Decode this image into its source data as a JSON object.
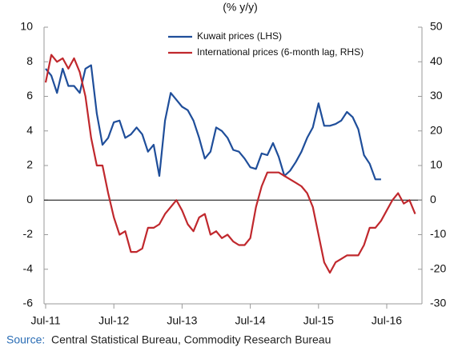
{
  "chart_data": {
    "type": "line",
    "title": "(% y/y)",
    "source_label": "Source:",
    "source": "Central Statistical Bureau, Commodity Research Bureau",
    "categories": [
      "Jul-11",
      null,
      null,
      null,
      null,
      null,
      null,
      null,
      null,
      null,
      null,
      null,
      "Jul-12",
      null,
      null,
      null,
      null,
      null,
      null,
      null,
      null,
      null,
      null,
      null,
      "Jul-13",
      null,
      null,
      null,
      null,
      null,
      null,
      null,
      null,
      null,
      null,
      null,
      "Jul-14",
      null,
      null,
      null,
      null,
      null,
      null,
      null,
      null,
      null,
      null,
      null,
      "Jul-15",
      null,
      null,
      null,
      null,
      null,
      null,
      null,
      null,
      null,
      null,
      null,
      "Jul-16",
      null,
      null,
      null,
      null,
      null
    ],
    "series": [
      {
        "name": "Kuwait prices (LHS)",
        "color": "#1f4e9a",
        "values": [
          7.6,
          7.2,
          6.2,
          7.6,
          6.6,
          6.6,
          6.2,
          7.6,
          7.8,
          5.0,
          3.2,
          3.6,
          4.5,
          4.6,
          3.6,
          3.8,
          4.2,
          3.8,
          2.8,
          3.2,
          1.4,
          4.6,
          6.2,
          5.8,
          5.4,
          5.2,
          4.6,
          3.6,
          2.4,
          2.8,
          4.2,
          4.0,
          3.6,
          2.9,
          2.8,
          2.4,
          1.9,
          1.8,
          2.7,
          2.6,
          3.3,
          2.5,
          1.4,
          1.7,
          2.2,
          2.8,
          3.6,
          4.2,
          5.6,
          4.3,
          4.3,
          4.4,
          4.6,
          5.1,
          4.8,
          4.1,
          2.6,
          2.1,
          1.2,
          1.2,
          null,
          null,
          null,
          null,
          null,
          null
        ]
      },
      {
        "name": "International prices (6-month lag, RHS)",
        "color": "#c0282d",
        "axis": "y2",
        "values": [
          34,
          42,
          40,
          41,
          38,
          41,
          37,
          30,
          18,
          10,
          10,
          2,
          -5,
          -10,
          -9,
          -15,
          -15,
          -14,
          -8,
          -8,
          -7,
          -4,
          -2,
          0,
          -3,
          -7,
          -9,
          -5,
          -4,
          -10,
          -9,
          -11,
          -10,
          -12,
          -13,
          -13,
          -11,
          -2,
          4,
          8,
          8,
          8,
          7,
          6,
          5,
          4,
          2,
          -2,
          -10,
          -18,
          -21,
          -18,
          -17,
          -16,
          -16,
          -16,
          -13,
          -8,
          -8,
          -6,
          -3,
          0,
          2,
          -1,
          0,
          -4
        ]
      }
    ],
    "ylim": [
      -6,
      10
    ],
    "yticks": [
      -6,
      -4,
      -2,
      0,
      2,
      4,
      6,
      8,
      10
    ],
    "y2lim": [
      -30,
      50
    ],
    "y2ticks": [
      -30,
      -20,
      -10,
      0,
      10,
      20,
      30,
      40,
      50
    ],
    "grid": false
  }
}
